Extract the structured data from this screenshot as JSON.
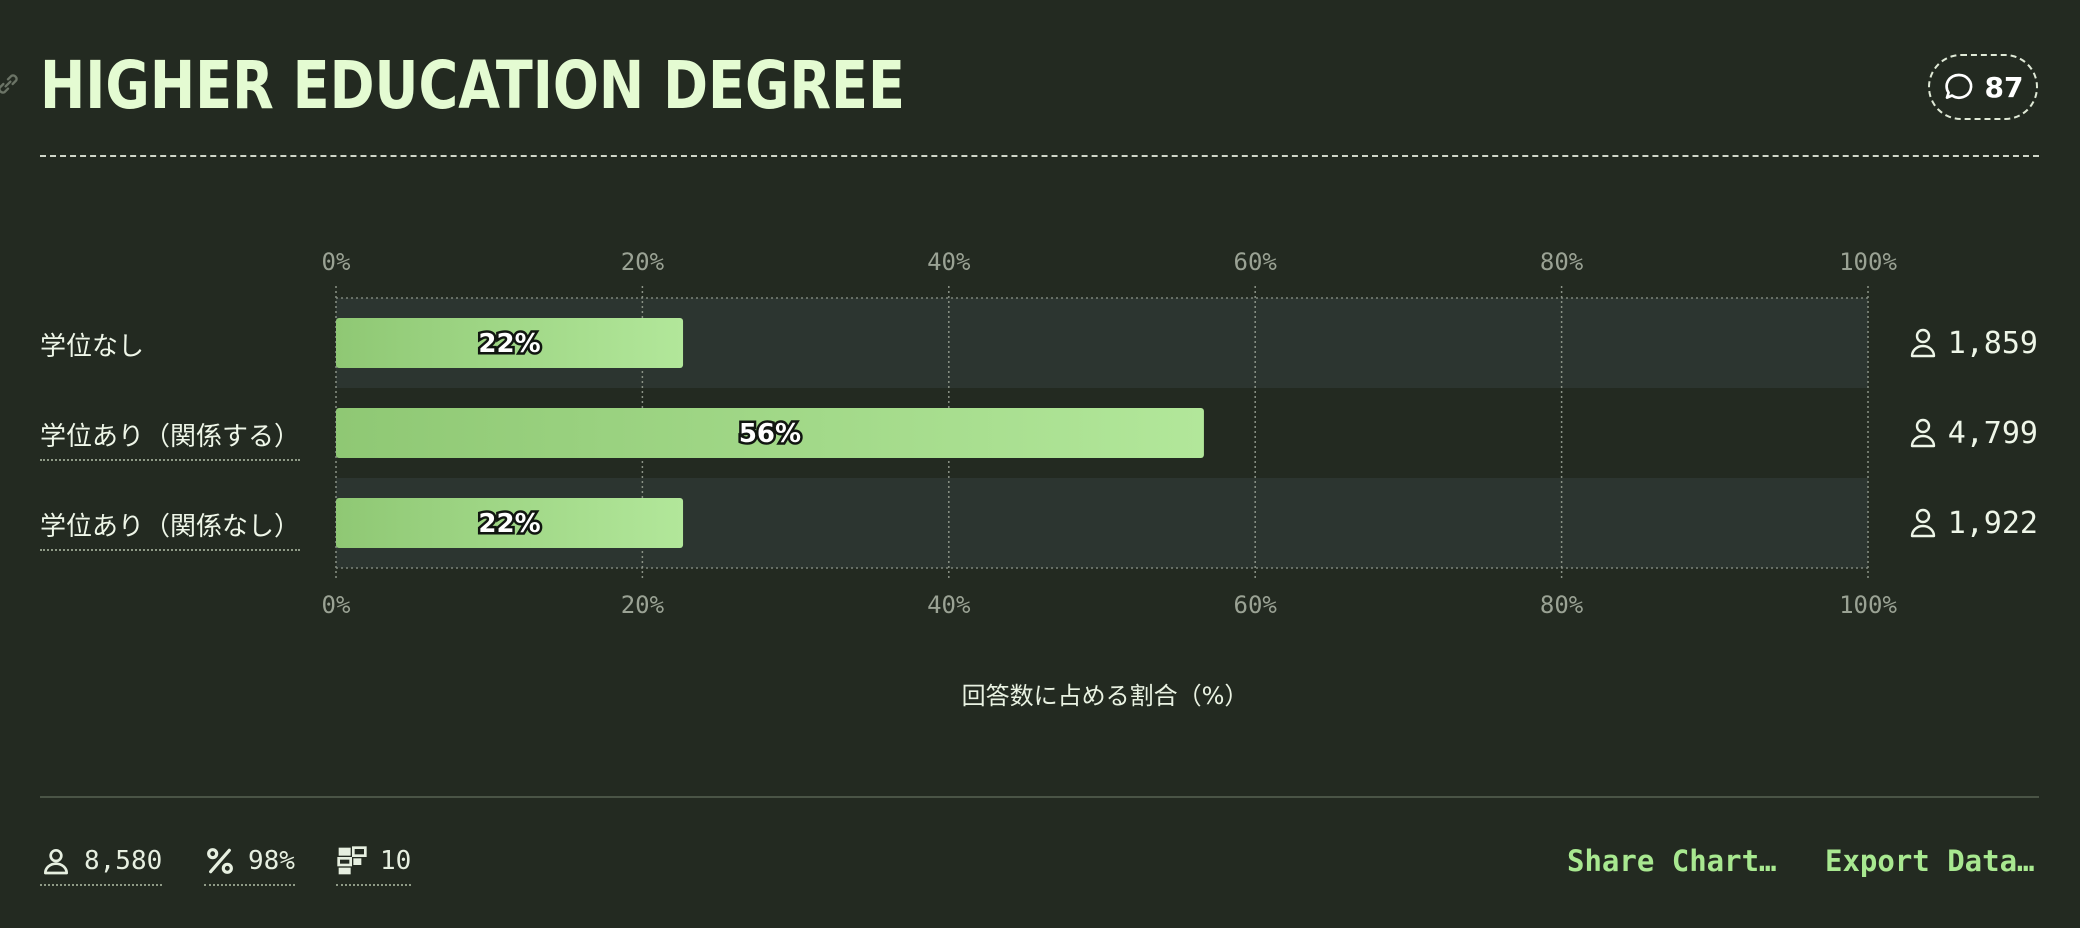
{
  "header": {
    "title": "HIGHER EDUCATION DEGREE",
    "comment_count": "87"
  },
  "chart_data": {
    "type": "bar",
    "orientation": "horizontal",
    "categories": [
      "学位なし",
      "学位あり（関係する）",
      "学位あり（関係なし）"
    ],
    "values": [
      22,
      56,
      22
    ],
    "value_labels": [
      "22%",
      "56%",
      "22%"
    ],
    "counts": [
      "1,859",
      "4,799",
      "1,922"
    ],
    "xlim": [
      0,
      100
    ],
    "xticks": [
      0,
      20,
      40,
      60,
      80,
      100
    ],
    "xtick_labels": [
      "0%",
      "20%",
      "40%",
      "60%",
      "80%",
      "100%"
    ],
    "xlabel": "回答数に占める割合（%）",
    "grid": true
  },
  "footer": {
    "respondents": "8,580",
    "completion": "98%",
    "questions": "10",
    "share_label": "Share Chart…",
    "export_label": "Export Data…"
  },
  "colors": {
    "background": "#232a21",
    "bar_start": "#8fc874",
    "bar_end": "#b2e79a",
    "accent": "#a8e890"
  }
}
